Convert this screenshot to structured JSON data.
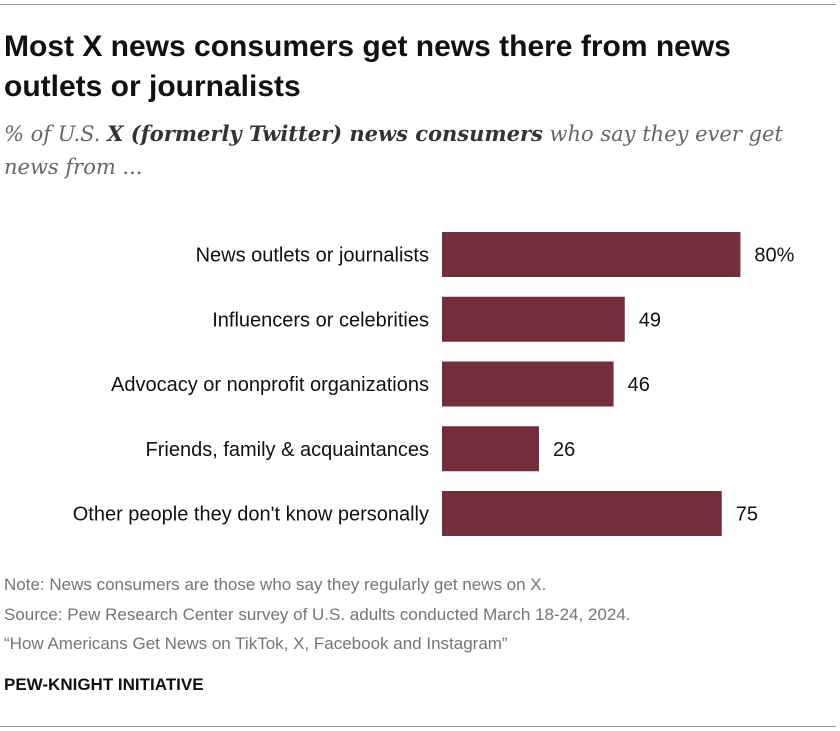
{
  "title": "Most X news consumers get news there from news outlets or journalists",
  "subtitle": {
    "prefix": "% of U.S. ",
    "emphasis": "X (formerly Twitter) news consumers",
    "suffix": " who say they ever get news from ..."
  },
  "chart_data": {
    "type": "bar",
    "orientation": "horizontal",
    "categories": [
      "News outlets or journalists",
      "Influencers or celebrities",
      "Advocacy or nonprofit organizations",
      "Friends, family & acquaintances",
      "Other people they don't know personally"
    ],
    "values": [
      80,
      49,
      46,
      26,
      75
    ],
    "value_labels": [
      "80%",
      "49",
      "46",
      "26",
      "75"
    ],
    "xlim": [
      0,
      100
    ],
    "grid": false,
    "bar_color": "#722f3b"
  },
  "footer": {
    "note": "Note: News consumers are those who say they regularly get news on X.",
    "source": "Source: Pew Research Center survey of U.S. adults conducted March 18-24, 2024.",
    "report": "“How Americans Get News on TikTok, X, Facebook and Instagram”",
    "organization": "PEW-KNIGHT INITIATIVE"
  }
}
